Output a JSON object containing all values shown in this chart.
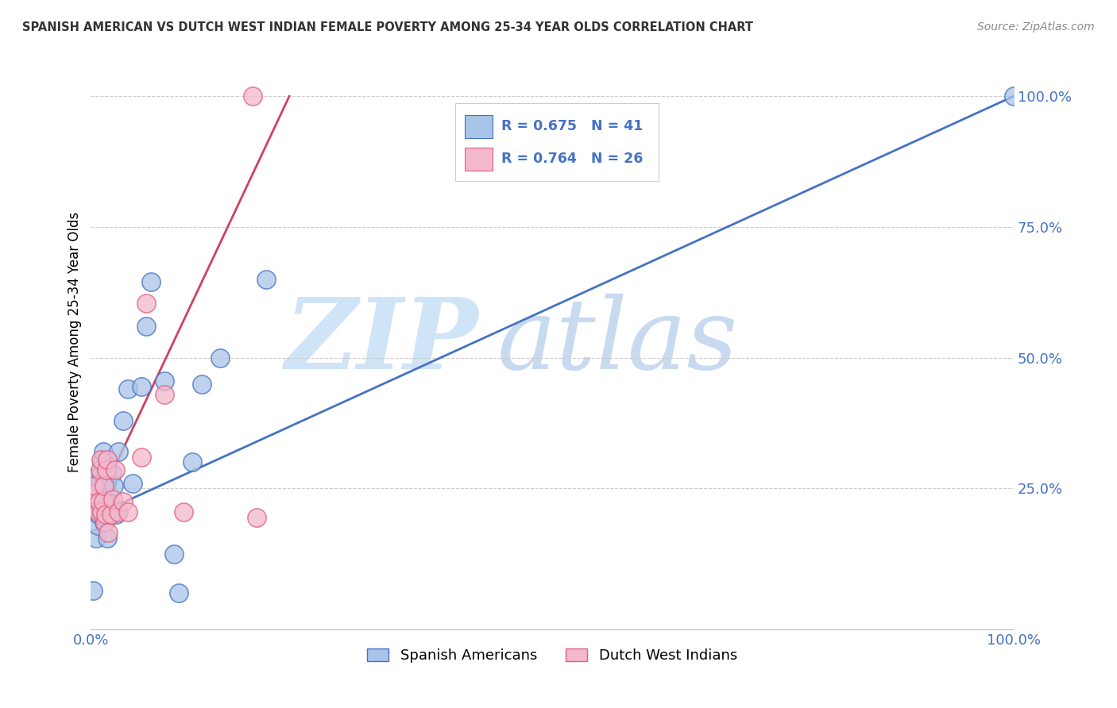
{
  "title": "SPANISH AMERICAN VS DUTCH WEST INDIAN FEMALE POVERTY AMONG 25-34 YEAR OLDS CORRELATION CHART",
  "source": "Source: ZipAtlas.com",
  "ylabel": "Female Poverty Among 25-34 Year Olds",
  "ytick_labels": [
    "25.0%",
    "50.0%",
    "75.0%",
    "100.0%"
  ],
  "ytick_values": [
    0.25,
    0.5,
    0.75,
    1.0
  ],
  "blue_R": "0.675",
  "blue_N": "41",
  "pink_R": "0.764",
  "pink_N": "26",
  "blue_color": "#a8c4e8",
  "pink_color": "#f4b8cc",
  "blue_edge_color": "#4472c4",
  "pink_edge_color": "#e06080",
  "blue_line_color": "#4472c4",
  "pink_line_color": "#d04060",
  "title_color": "#333333",
  "axis_label_color": "#4472c4",
  "watermark_zip_color": "#d0e4f8",
  "watermark_atlas_color": "#c8daf0",
  "grid_color": "#cccccc",
  "background_color": "#ffffff",
  "blue_scatter_x": [
    0.002,
    0.003,
    0.006,
    0.007,
    0.008,
    0.008,
    0.009,
    0.01,
    0.01,
    0.011,
    0.012,
    0.013,
    0.014,
    0.015,
    0.015,
    0.016,
    0.017,
    0.018,
    0.018,
    0.019,
    0.02,
    0.021,
    0.022,
    0.023,
    0.025,
    0.027,
    0.03,
    0.035,
    0.04,
    0.045,
    0.055,
    0.06,
    0.065,
    0.08,
    0.09,
    0.095,
    0.11,
    0.12,
    0.14,
    0.19,
    1.0
  ],
  "blue_scatter_y": [
    0.055,
    0.27,
    0.155,
    0.18,
    0.2,
    0.225,
    0.24,
    0.21,
    0.26,
    0.28,
    0.3,
    0.32,
    0.185,
    0.195,
    0.205,
    0.22,
    0.26,
    0.285,
    0.155,
    0.205,
    0.22,
    0.2,
    0.22,
    0.28,
    0.255,
    0.2,
    0.32,
    0.38,
    0.44,
    0.26,
    0.445,
    0.56,
    0.645,
    0.455,
    0.125,
    0.05,
    0.3,
    0.45,
    0.5,
    0.65,
    1.0
  ],
  "pink_scatter_x": [
    0.002,
    0.003,
    0.004,
    0.008,
    0.009,
    0.01,
    0.011,
    0.012,
    0.013,
    0.014,
    0.015,
    0.016,
    0.017,
    0.018,
    0.019,
    0.022,
    0.024,
    0.026,
    0.03,
    0.035,
    0.04,
    0.055,
    0.06,
    0.08,
    0.1,
    0.18
  ],
  "pink_scatter_y": [
    0.23,
    0.24,
    0.255,
    0.205,
    0.225,
    0.285,
    0.305,
    0.205,
    0.225,
    0.255,
    0.185,
    0.2,
    0.285,
    0.305,
    0.165,
    0.2,
    0.23,
    0.285,
    0.205,
    0.225,
    0.205,
    0.31,
    0.605,
    0.43,
    0.205,
    0.195
  ],
  "pink_outlier_x": [
    0.175
  ],
  "pink_outlier_y": [
    1.0
  ],
  "blue_line_x": [
    0.0,
    1.0
  ],
  "blue_line_y": [
    0.195,
    1.0
  ],
  "pink_line_x": [
    0.0,
    0.215
  ],
  "pink_line_y": [
    0.195,
    1.0
  ],
  "xlim": [
    0,
    1
  ],
  "ylim": [
    -0.02,
    1.08
  ],
  "legend_blue_label": "R = 0.675   N = 41",
  "legend_pink_label": "R = 0.764   N = 26",
  "bottom_legend_blue": "Spanish Americans",
  "bottom_legend_pink": "Dutch West Indians"
}
